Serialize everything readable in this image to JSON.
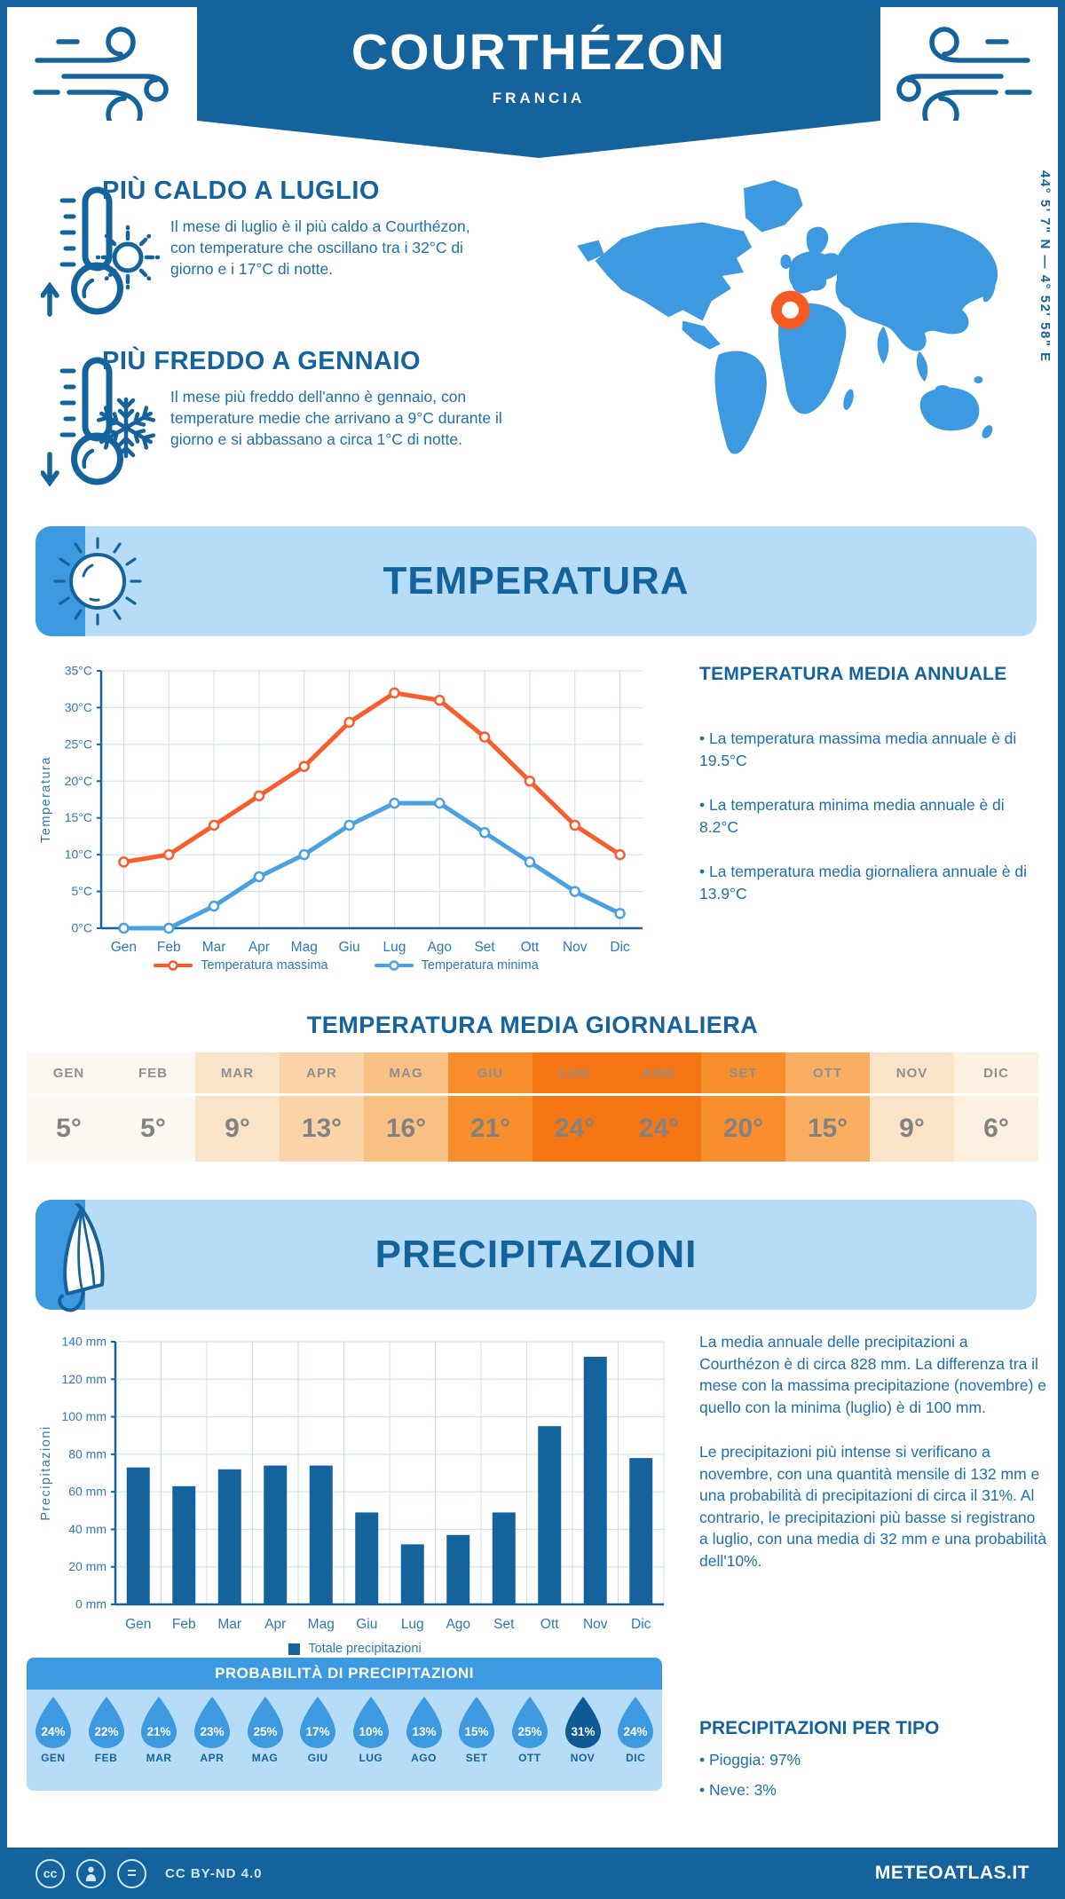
{
  "header": {
    "title": "COURTHÉZON",
    "subtitle": "FRANCIA",
    "coordinates": "44° 5' 7\" N — 4° 52' 58\" E"
  },
  "highlights": {
    "warmest": {
      "title": "PIÙ CALDO A LUGLIO",
      "text": "Il mese di luglio è il più caldo a Courthézon, con temperature che oscillano tra i 32°C di giorno e i 17°C di notte."
    },
    "coldest": {
      "title": "PIÙ FREDDO A GENNAIO",
      "text": "Il mese più freddo dell'anno è gennaio, con temperature medie che arrivano a 9°C durante il giorno e si abbassano a circa 1°C di notte."
    }
  },
  "temperature_section": {
    "banner_title": "TEMPERATURA",
    "annual_heading": "TEMPERATURA MEDIA ANNUALE",
    "annual_bullets": [
      "• La temperatura massima media annuale è di 19.5°C",
      "• La temperatura minima media annuale è di 8.2°C",
      "• La temperatura media giornaliera annuale è di 13.9°C"
    ],
    "daily_heading": "TEMPERATURA MEDIA GIORNALIERA",
    "monthly_mean": {
      "months": [
        "GEN",
        "FEB",
        "MAR",
        "APR",
        "MAG",
        "GIU",
        "LUG",
        "AGO",
        "SET",
        "OTT",
        "NOV",
        "DIC"
      ],
      "values": [
        "5°",
        "5°",
        "9°",
        "13°",
        "16°",
        "21°",
        "24°",
        "24°",
        "20°",
        "15°",
        "9°",
        "6°"
      ],
      "cell_colors": [
        "#fdf7f1",
        "#fdf7f1",
        "#fbe3c8",
        "#fad3a6",
        "#f9c083",
        "#f78e2b",
        "#f57613",
        "#f57613",
        "#f78e2b",
        "#f9ae62",
        "#fbe3c8",
        "#fdf0e1"
      ]
    }
  },
  "precipitation_section": {
    "banner_title": "PRECIPITAZIONI",
    "paragraphs": [
      "La media annuale delle precipitazioni a Courthézon è di circa 828 mm. La differenza tra il mese con la massima precipitazione (novembre) e quello con la minima (luglio) è di 100 mm.",
      "Le precipitazioni più intense si verificano a novembre, con una quantità mensile di 132 mm e una probabilità di precipitazioni di circa il 31%. Al contrario, le precipitazioni più basse si registrano a luglio, con una media di 32 mm e una probabilità dell'10%."
    ],
    "probability": {
      "title": "PROBABILITÀ DI PRECIPITAZIONI",
      "months": [
        "GEN",
        "FEB",
        "MAR",
        "APR",
        "MAG",
        "GIU",
        "LUG",
        "AGO",
        "SET",
        "OTT",
        "NOV",
        "DIC"
      ],
      "values": [
        "24%",
        "22%",
        "21%",
        "23%",
        "25%",
        "17%",
        "10%",
        "13%",
        "15%",
        "25%",
        "31%",
        "24%"
      ],
      "highlight_index": 10,
      "drop_color": "#3d9ae0",
      "drop_highlight_color": "#0d5a94"
    },
    "per_type": {
      "heading": "PRECIPITAZIONI PER TIPO",
      "items": [
        "• Pioggia: 97%",
        "• Neve: 3%"
      ]
    }
  },
  "chart_data": [
    {
      "type": "line",
      "title": "Temperatura",
      "categories": [
        "Gen",
        "Feb",
        "Mar",
        "Apr",
        "Mag",
        "Giu",
        "Lug",
        "Ago",
        "Set",
        "Ott",
        "Nov",
        "Dic"
      ],
      "ylabel": "Temperatura",
      "ylim": [
        0,
        35
      ],
      "ytick_step": 5,
      "yticks": [
        "0°C",
        "5°C",
        "10°C",
        "15°C",
        "20°C",
        "25°C",
        "30°C",
        "35°C"
      ],
      "grid": true,
      "legend_position": "bottom",
      "series": [
        {
          "name": "Temperatura massima",
          "color": "#f95d2e",
          "values": [
            9,
            10,
            14,
            18,
            22,
            28,
            32,
            31,
            26,
            20,
            14,
            10
          ]
        },
        {
          "name": "Temperatura minima",
          "color": "#4aa1e0",
          "values": [
            0,
            0,
            3,
            7,
            10,
            14,
            17,
            17,
            13,
            9,
            5,
            2
          ]
        }
      ]
    },
    {
      "type": "bar",
      "title": "Precipitazioni",
      "categories": [
        "Gen",
        "Feb",
        "Mar",
        "Apr",
        "Mag",
        "Giu",
        "Lug",
        "Ago",
        "Set",
        "Ott",
        "Nov",
        "Dic"
      ],
      "values": [
        73,
        63,
        72,
        74,
        74,
        49,
        32,
        37,
        49,
        95,
        132,
        78
      ],
      "ylabel": "Precipitazioni",
      "ylim": [
        0,
        140
      ],
      "ytick_step": 20,
      "yticks": [
        "0 mm",
        "20 mm",
        "40 mm",
        "60 mm",
        "80 mm",
        "100 mm",
        "120 mm",
        "140 mm"
      ],
      "grid": true,
      "bar_color": "#15639d",
      "legend": "Totale precipitazioni"
    }
  ],
  "footer": {
    "license": "CC BY-ND 4.0",
    "brand": "METEOATLAS.IT"
  },
  "colors": {
    "primary": "#15639d",
    "medium_blue": "#3d9ae0",
    "light_blue": "#b7dcf8",
    "grid": "#ccdeee",
    "tick_text": "#2e78b5",
    "marker_orange": "#f75b22"
  }
}
